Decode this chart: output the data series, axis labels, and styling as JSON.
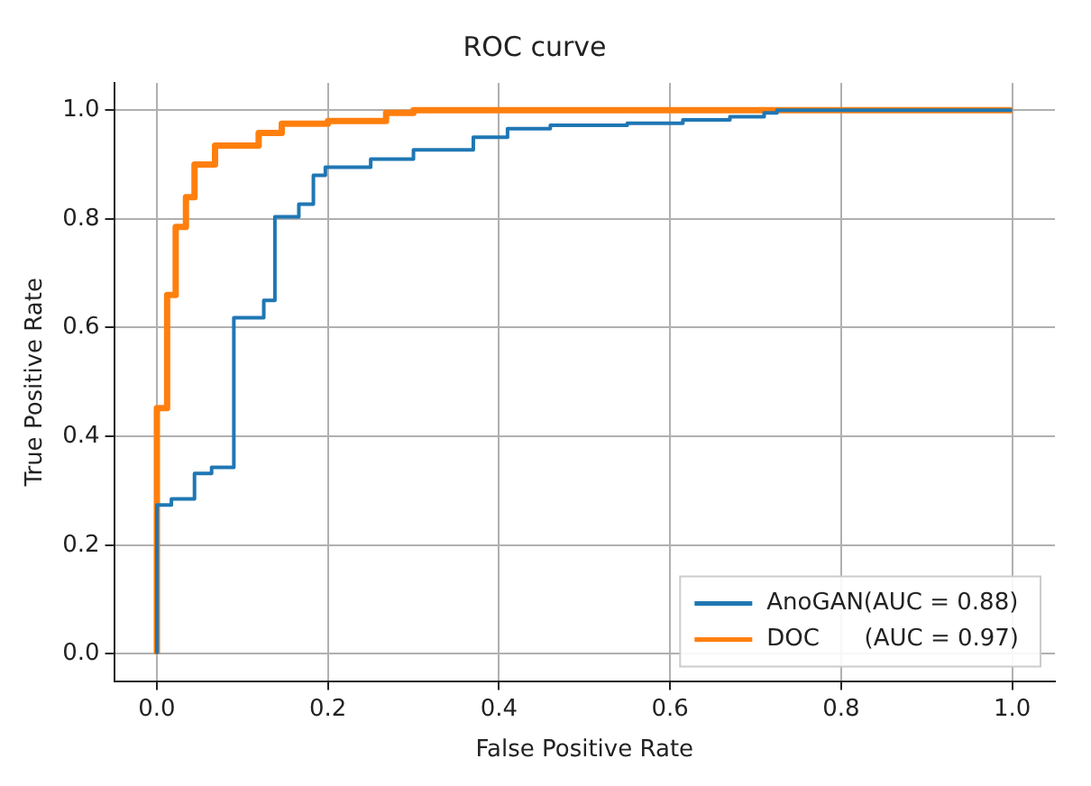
{
  "chart_data": {
    "type": "line",
    "title": "ROC curve",
    "xlabel": "False Positive Rate",
    "ylabel": "True Positive Rate",
    "xlim": [
      -0.05,
      1.05
    ],
    "ylim": [
      -0.05,
      1.05
    ],
    "xticks": [
      {
        "value": 0,
        "label": "0.0"
      },
      0.2,
      0.4,
      0.6,
      0.8,
      {
        "value": 1,
        "label": "1.0"
      }
    ],
    "yticks": [
      {
        "value": 0,
        "label": "0.0"
      },
      0.2,
      0.4,
      0.6,
      0.8,
      {
        "value": 1,
        "label": "1.0"
      }
    ],
    "grid": true,
    "legend": "bottom right",
    "marker": "none",
    "line_style": "solid",
    "series": [
      {
        "name": "AnoGAN(AUC = 0.88)",
        "color": "#1f77b4",
        "x": [
          0,
          0,
          0.017,
          0.017,
          0.044,
          0.044,
          0.064,
          0.064,
          0.09,
          0.09,
          0.125,
          0.125,
          0.138,
          0.138,
          0.166,
          0.166,
          0.183,
          0.183,
          0.197,
          0.197,
          0.25,
          0.25,
          0.3,
          0.3,
          0.37,
          0.37,
          0.41,
          0.41,
          0.46,
          0.46,
          0.55,
          0.55,
          0.615,
          0.615,
          0.67,
          0.67,
          0.71,
          0.71,
          0.725,
          0.725,
          1
        ],
        "values": [
          0,
          0.274,
          0.274,
          0.285,
          0.285,
          0.332,
          0.332,
          0.343,
          0.343,
          0.618,
          0.618,
          0.65,
          0.65,
          0.804,
          0.804,
          0.827,
          0.827,
          0.88,
          0.88,
          0.895,
          0.895,
          0.91,
          0.91,
          0.927,
          0.927,
          0.95,
          0.95,
          0.966,
          0.966,
          0.972,
          0.972,
          0.976,
          0.976,
          0.982,
          0.982,
          0.988,
          0.988,
          0.995,
          0.995,
          1,
          1
        ]
      },
      {
        "name": "DOC      (AUC = 0.97)",
        "color": "#ff7f0e",
        "x": [
          0,
          0,
          0.012,
          0.012,
          0.022,
          0.022,
          0.034,
          0.034,
          0.044,
          0.044,
          0.068,
          0.068,
          0.119,
          0.119,
          0.146,
          0.146,
          0.2,
          0.2,
          0.268,
          0.268,
          0.3,
          0.3,
          1
        ],
        "values": [
          0,
          0.452,
          0.452,
          0.66,
          0.66,
          0.785,
          0.785,
          0.84,
          0.84,
          0.9,
          0.9,
          0.935,
          0.935,
          0.958,
          0.958,
          0.975,
          0.975,
          0.98,
          0.98,
          0.995,
          0.995,
          1,
          1
        ]
      }
    ]
  }
}
